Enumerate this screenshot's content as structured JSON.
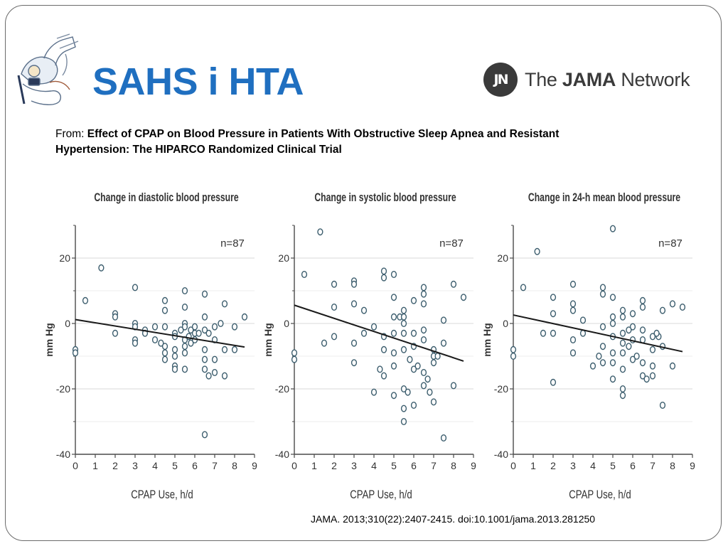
{
  "slide": {
    "title": "SAHS i HTA",
    "publisher": {
      "mark": "JN",
      "name_prefix": "The ",
      "name_bold": "JAMA",
      "name_suffix": " Network"
    },
    "source_prefix": "From: ",
    "source_title_line1": "Effect of CPAP on Blood Pressure in Patients With Obstructive Sleep Apnea and Resistant",
    "source_title_line2": "Hypertension:  The HIPARCO Randomized Clinical Trial",
    "citation": "JAMA. 2013;310(22):2407-2415. doi:10.1001/jama.2013.281250"
  },
  "colors": {
    "title": "#1f6fc0",
    "point": "#3d5e6e",
    "regression": "#1a1a1a",
    "grid": "#d9d9d9",
    "axis": "#4a4a4a"
  },
  "chart_data": [
    {
      "type": "scatter",
      "title": "Change in diastolic blood pressure",
      "xlabel": "CPAP Use, h/d",
      "ylabel": "mm Hg",
      "annotation": "n=87",
      "xlim": [
        0,
        9
      ],
      "ylim": [
        -40,
        30
      ],
      "xticks": [
        0,
        1,
        2,
        3,
        4,
        5,
        6,
        7,
        8,
        9
      ],
      "yticks": [
        20,
        0,
        -20,
        -40
      ],
      "ytick_labels": [
        "20",
        "0",
        "-20",
        "-40"
      ],
      "regression": {
        "x": [
          0,
          8.5
        ],
        "y": [
          1.2,
          -7.2
        ]
      },
      "points": [
        [
          0,
          -8
        ],
        [
          0,
          -9
        ],
        [
          0.5,
          7
        ],
        [
          1.3,
          17
        ],
        [
          2,
          3
        ],
        [
          2,
          2
        ],
        [
          2,
          -3
        ],
        [
          3,
          11
        ],
        [
          3,
          0
        ],
        [
          3,
          -1
        ],
        [
          3,
          -5
        ],
        [
          3,
          -6
        ],
        [
          3.5,
          -2
        ],
        [
          3.5,
          -3
        ],
        [
          4,
          -1
        ],
        [
          4,
          -5
        ],
        [
          4.3,
          -6
        ],
        [
          4.5,
          7
        ],
        [
          4.5,
          4
        ],
        [
          4.5,
          -1
        ],
        [
          4.5,
          -7
        ],
        [
          4.5,
          -9
        ],
        [
          4.5,
          -11
        ],
        [
          5,
          -3
        ],
        [
          5,
          -4
        ],
        [
          5,
          -8
        ],
        [
          5,
          -10
        ],
        [
          5,
          -13
        ],
        [
          5,
          -14
        ],
        [
          5.3,
          -2
        ],
        [
          5.5,
          10
        ],
        [
          5.5,
          5
        ],
        [
          5.5,
          0
        ],
        [
          5.5,
          -1
        ],
        [
          5.5,
          -5
        ],
        [
          5.5,
          -7
        ],
        [
          5.5,
          -9
        ],
        [
          5.5,
          -14
        ],
        [
          5.8,
          -2
        ],
        [
          5.8,
          -6
        ],
        [
          6,
          -1
        ],
        [
          6,
          -3
        ],
        [
          6,
          -5
        ],
        [
          6.5,
          9
        ],
        [
          6.5,
          2
        ],
        [
          6.5,
          -2
        ],
        [
          6.5,
          -8
        ],
        [
          6.5,
          -11
        ],
        [
          6.5,
          -14
        ],
        [
          6.5,
          -34
        ],
        [
          6.7,
          -3
        ],
        [
          6.7,
          -16
        ],
        [
          7,
          -5
        ],
        [
          7,
          -11
        ],
        [
          7,
          -15
        ],
        [
          7,
          -1
        ],
        [
          7.3,
          0
        ],
        [
          7.5,
          6
        ],
        [
          7.5,
          -8
        ],
        [
          7.5,
          -16
        ],
        [
          8,
          -1
        ],
        [
          8,
          -8
        ],
        [
          8.5,
          2
        ],
        [
          5.7,
          -4
        ],
        [
          6.2,
          -3
        ]
      ]
    },
    {
      "type": "scatter",
      "title": "Change in systolic blood pressure",
      "xlabel": "CPAP Use, h/d",
      "ylabel": "mm Hg",
      "annotation": "n=87",
      "xlim": [
        0,
        9
      ],
      "ylim": [
        -40,
        30
      ],
      "xticks": [
        0,
        1,
        2,
        3,
        4,
        5,
        6,
        7,
        8,
        9
      ],
      "yticks": [
        20,
        0,
        -20,
        -40
      ],
      "ytick_labels": [
        "20",
        "0",
        "-20",
        "-40"
      ],
      "regression": {
        "x": [
          0,
          8.5
        ],
        "y": [
          5.6,
          -11.5
        ]
      },
      "points": [
        [
          0,
          -9
        ],
        [
          0,
          -11
        ],
        [
          0.5,
          15
        ],
        [
          1.3,
          28
        ],
        [
          1.5,
          -6
        ],
        [
          2,
          12
        ],
        [
          2,
          5
        ],
        [
          2,
          -4
        ],
        [
          3,
          13
        ],
        [
          3,
          12
        ],
        [
          3,
          6
        ],
        [
          3,
          -6
        ],
        [
          3,
          -12
        ],
        [
          3.5,
          4
        ],
        [
          3.5,
          -3
        ],
        [
          4,
          -1
        ],
        [
          4,
          -21
        ],
        [
          4.3,
          -14
        ],
        [
          4.5,
          16
        ],
        [
          4.5,
          14
        ],
        [
          4.5,
          -4
        ],
        [
          4.5,
          -8
        ],
        [
          4.5,
          -16
        ],
        [
          5,
          15
        ],
        [
          5,
          8
        ],
        [
          5,
          2
        ],
        [
          5,
          -3
        ],
        [
          5,
          -9
        ],
        [
          5,
          -13
        ],
        [
          5,
          -22
        ],
        [
          5.3,
          2
        ],
        [
          5.5,
          4
        ],
        [
          5.5,
          2
        ],
        [
          5.5,
          0
        ],
        [
          5.5,
          -3
        ],
        [
          5.5,
          -8
        ],
        [
          5.5,
          -20
        ],
        [
          5.5,
          -26
        ],
        [
          5.5,
          -30
        ],
        [
          5.7,
          -21
        ],
        [
          6,
          7
        ],
        [
          6,
          -3
        ],
        [
          6,
          -7
        ],
        [
          6,
          -14
        ],
        [
          6,
          -25
        ],
        [
          6.5,
          11
        ],
        [
          6.5,
          9
        ],
        [
          6.5,
          6
        ],
        [
          6.5,
          -2
        ],
        [
          6.5,
          -5
        ],
        [
          6.5,
          -15
        ],
        [
          6.5,
          -19
        ],
        [
          6.7,
          -17
        ],
        [
          6.8,
          -21
        ],
        [
          7,
          -8
        ],
        [
          7,
          -10
        ],
        [
          7,
          -12
        ],
        [
          7,
          -24
        ],
        [
          7.5,
          1
        ],
        [
          7.5,
          -6
        ],
        [
          7.5,
          -35
        ],
        [
          8,
          12
        ],
        [
          8,
          -19
        ],
        [
          8.5,
          8
        ],
        [
          6.2,
          -13
        ],
        [
          5.8,
          -11
        ],
        [
          7.2,
          -10
        ]
      ]
    },
    {
      "type": "scatter",
      "title": "Change in 24-h mean blood pressure",
      "xlabel": "CPAP Use, h/d",
      "ylabel": "mm Hg",
      "annotation": "n=87",
      "xlim": [
        0,
        9
      ],
      "ylim": [
        -40,
        30
      ],
      "xticks": [
        0,
        1,
        2,
        3,
        4,
        5,
        6,
        7,
        8,
        9
      ],
      "yticks": [
        20,
        0,
        -20,
        -40
      ],
      "ytick_labels": [
        "20",
        "0",
        "-20",
        "-40"
      ],
      "regression": {
        "x": [
          0,
          8.5
        ],
        "y": [
          2.6,
          -8.6
        ]
      },
      "points": [
        [
          0,
          -8
        ],
        [
          0,
          -10
        ],
        [
          0.5,
          11
        ],
        [
          1.2,
          22
        ],
        [
          1.5,
          -3
        ],
        [
          2,
          8
        ],
        [
          2,
          3
        ],
        [
          2,
          -3
        ],
        [
          2,
          -18
        ],
        [
          3,
          12
        ],
        [
          3,
          6
        ],
        [
          3,
          4
        ],
        [
          3,
          -5
        ],
        [
          3,
          -9
        ],
        [
          3.5,
          -3
        ],
        [
          3.5,
          1
        ],
        [
          4,
          -13
        ],
        [
          4.3,
          -10
        ],
        [
          4.5,
          11
        ],
        [
          4.5,
          9
        ],
        [
          4.5,
          -1
        ],
        [
          4.5,
          -7
        ],
        [
          4.5,
          -12
        ],
        [
          5,
          29
        ],
        [
          5,
          8
        ],
        [
          5,
          2
        ],
        [
          5,
          0
        ],
        [
          5,
          -4
        ],
        [
          5,
          -9
        ],
        [
          5,
          -12
        ],
        [
          5,
          -17
        ],
        [
          5.5,
          4
        ],
        [
          5.5,
          2
        ],
        [
          5.5,
          -3
        ],
        [
          5.5,
          -6
        ],
        [
          5.5,
          -9
        ],
        [
          5.5,
          -14
        ],
        [
          5.5,
          -20
        ],
        [
          5.5,
          -22
        ],
        [
          5.8,
          -7
        ],
        [
          6,
          3
        ],
        [
          6,
          -1
        ],
        [
          6,
          -5
        ],
        [
          6,
          -11
        ],
        [
          6.5,
          7
        ],
        [
          6.5,
          5
        ],
        [
          6.5,
          -2
        ],
        [
          6.5,
          -5
        ],
        [
          6.5,
          -12
        ],
        [
          6.5,
          -16
        ],
        [
          6.7,
          -17
        ],
        [
          7,
          -4
        ],
        [
          7,
          -8
        ],
        [
          7,
          -13
        ],
        [
          7,
          -16
        ],
        [
          7.3,
          -4
        ],
        [
          7.5,
          4
        ],
        [
          7.5,
          -7
        ],
        [
          7.5,
          -25
        ],
        [
          8,
          6
        ],
        [
          8,
          -13
        ],
        [
          8.5,
          5
        ],
        [
          6.2,
          -10
        ],
        [
          5.8,
          -2
        ],
        [
          7.2,
          -3
        ]
      ]
    }
  ]
}
